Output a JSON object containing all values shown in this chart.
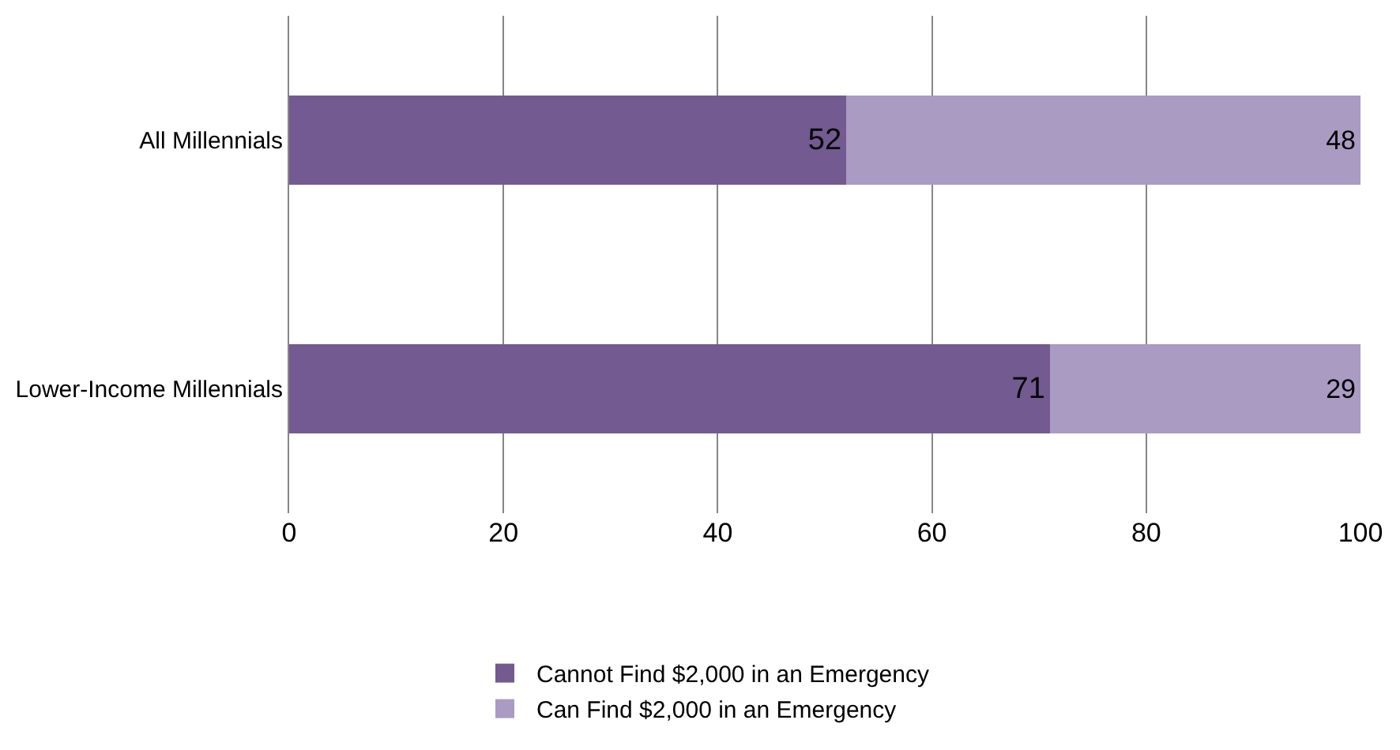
{
  "chart_data": {
    "type": "bar",
    "orientation": "horizontal",
    "stacked": true,
    "categories": [
      "All Millennials",
      "Lower-Income Millennials"
    ],
    "series": [
      {
        "name": "Cannot Find $2,000 in an Emergency",
        "color": "#735a91",
        "values": [
          52,
          71
        ]
      },
      {
        "name": "Can Find $2,000 in an Emergency",
        "color": "#a99bc2",
        "values": [
          48,
          29
        ]
      }
    ],
    "xlim": [
      0,
      100
    ],
    "xticks": [
      0,
      20,
      40,
      60,
      80,
      100
    ],
    "grid": "x",
    "legend": "bottom",
    "data_labels": true
  }
}
